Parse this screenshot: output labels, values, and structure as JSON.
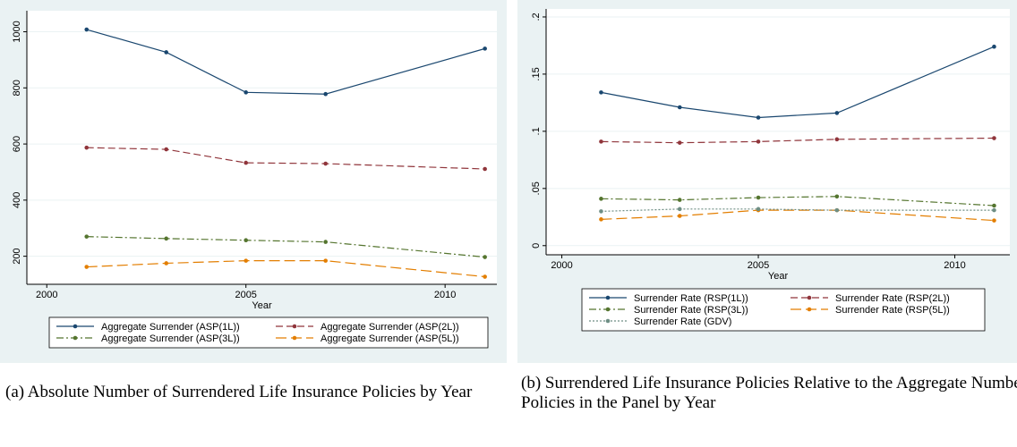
{
  "chart_data": [
    {
      "type": "line",
      "x_label": "Year",
      "caption": "(a) Absolute Number of Surrendered Life Insurance Policies by Year",
      "x": [
        2001,
        2003,
        2005,
        2007,
        2011
      ],
      "xlim": [
        1999.5,
        2011.3
      ],
      "xticks": [
        2000,
        2005,
        2010
      ],
      "ylim": [
        100,
        1075
      ],
      "yticks": [
        200,
        400,
        600,
        800,
        1000
      ],
      "grid": true,
      "legend_columns": 2,
      "series": [
        {
          "name": "Aggregate Surrender (ASP(1L))",
          "color": "#1a476f",
          "dash": "solid",
          "values": [
            1008,
            927,
            784,
            778,
            940
          ]
        },
        {
          "name": "Aggregate Surrender (ASP(2L))",
          "color": "#90353b",
          "dash": "dash",
          "values": [
            587,
            581,
            533,
            530,
            511
          ]
        },
        {
          "name": "Aggregate Surrender (ASP(3L))",
          "color": "#55752f",
          "dash": "dashdot",
          "values": [
            270,
            263,
            257,
            251,
            197
          ]
        },
        {
          "name": "Aggregate Surrender (ASP(5L))",
          "color": "#e37e00",
          "dash": "longdash",
          "values": [
            162,
            175,
            184,
            184,
            127
          ]
        }
      ]
    },
    {
      "type": "line",
      "x_label": "Year",
      "caption": "(b) Surrendered Life Insurance Policies Relative to the Aggregate Number of Policies in the Panel by Year",
      "x": [
        2001,
        2003,
        2005,
        2007,
        2011
      ],
      "xlim": [
        1999.6,
        2011.4
      ],
      "xticks": [
        2000,
        2005,
        2010
      ],
      "ylim": [
        -0.008,
        0.207
      ],
      "yticks": [
        0,
        {
          "value": 0.05,
          "label": ".05"
        },
        {
          "value": 0.1,
          "label": ".1"
        },
        {
          "value": 0.15,
          "label": ".15"
        },
        {
          "value": 0.2,
          "label": ".2"
        }
      ],
      "grid": true,
      "legend_columns": 2,
      "series": [
        {
          "name": "Surrender Rate (RSP(1L))",
          "color": "#1a476f",
          "dash": "solid",
          "values": [
            0.134,
            0.121,
            0.112,
            0.116,
            0.174
          ]
        },
        {
          "name": "Surrender Rate (RSP(2L))",
          "color": "#90353b",
          "dash": "dash",
          "values": [
            0.091,
            0.09,
            0.091,
            0.093,
            0.094
          ]
        },
        {
          "name": "Surrender Rate (RSP(3L))",
          "color": "#55752f",
          "dash": "dashdot",
          "values": [
            0.041,
            0.04,
            0.042,
            0.043,
            0.035
          ]
        },
        {
          "name": "Surrender Rate (RSP(5L))",
          "color": "#e37e00",
          "dash": "longdash",
          "values": [
            0.023,
            0.026,
            0.031,
            0.031,
            0.022
          ]
        },
        {
          "name": "Surrender Rate (GDV)",
          "color": "#6e8e84",
          "dash": "dot",
          "values": [
            0.03,
            0.032,
            0.032,
            0.031,
            0.031
          ]
        }
      ]
    }
  ]
}
